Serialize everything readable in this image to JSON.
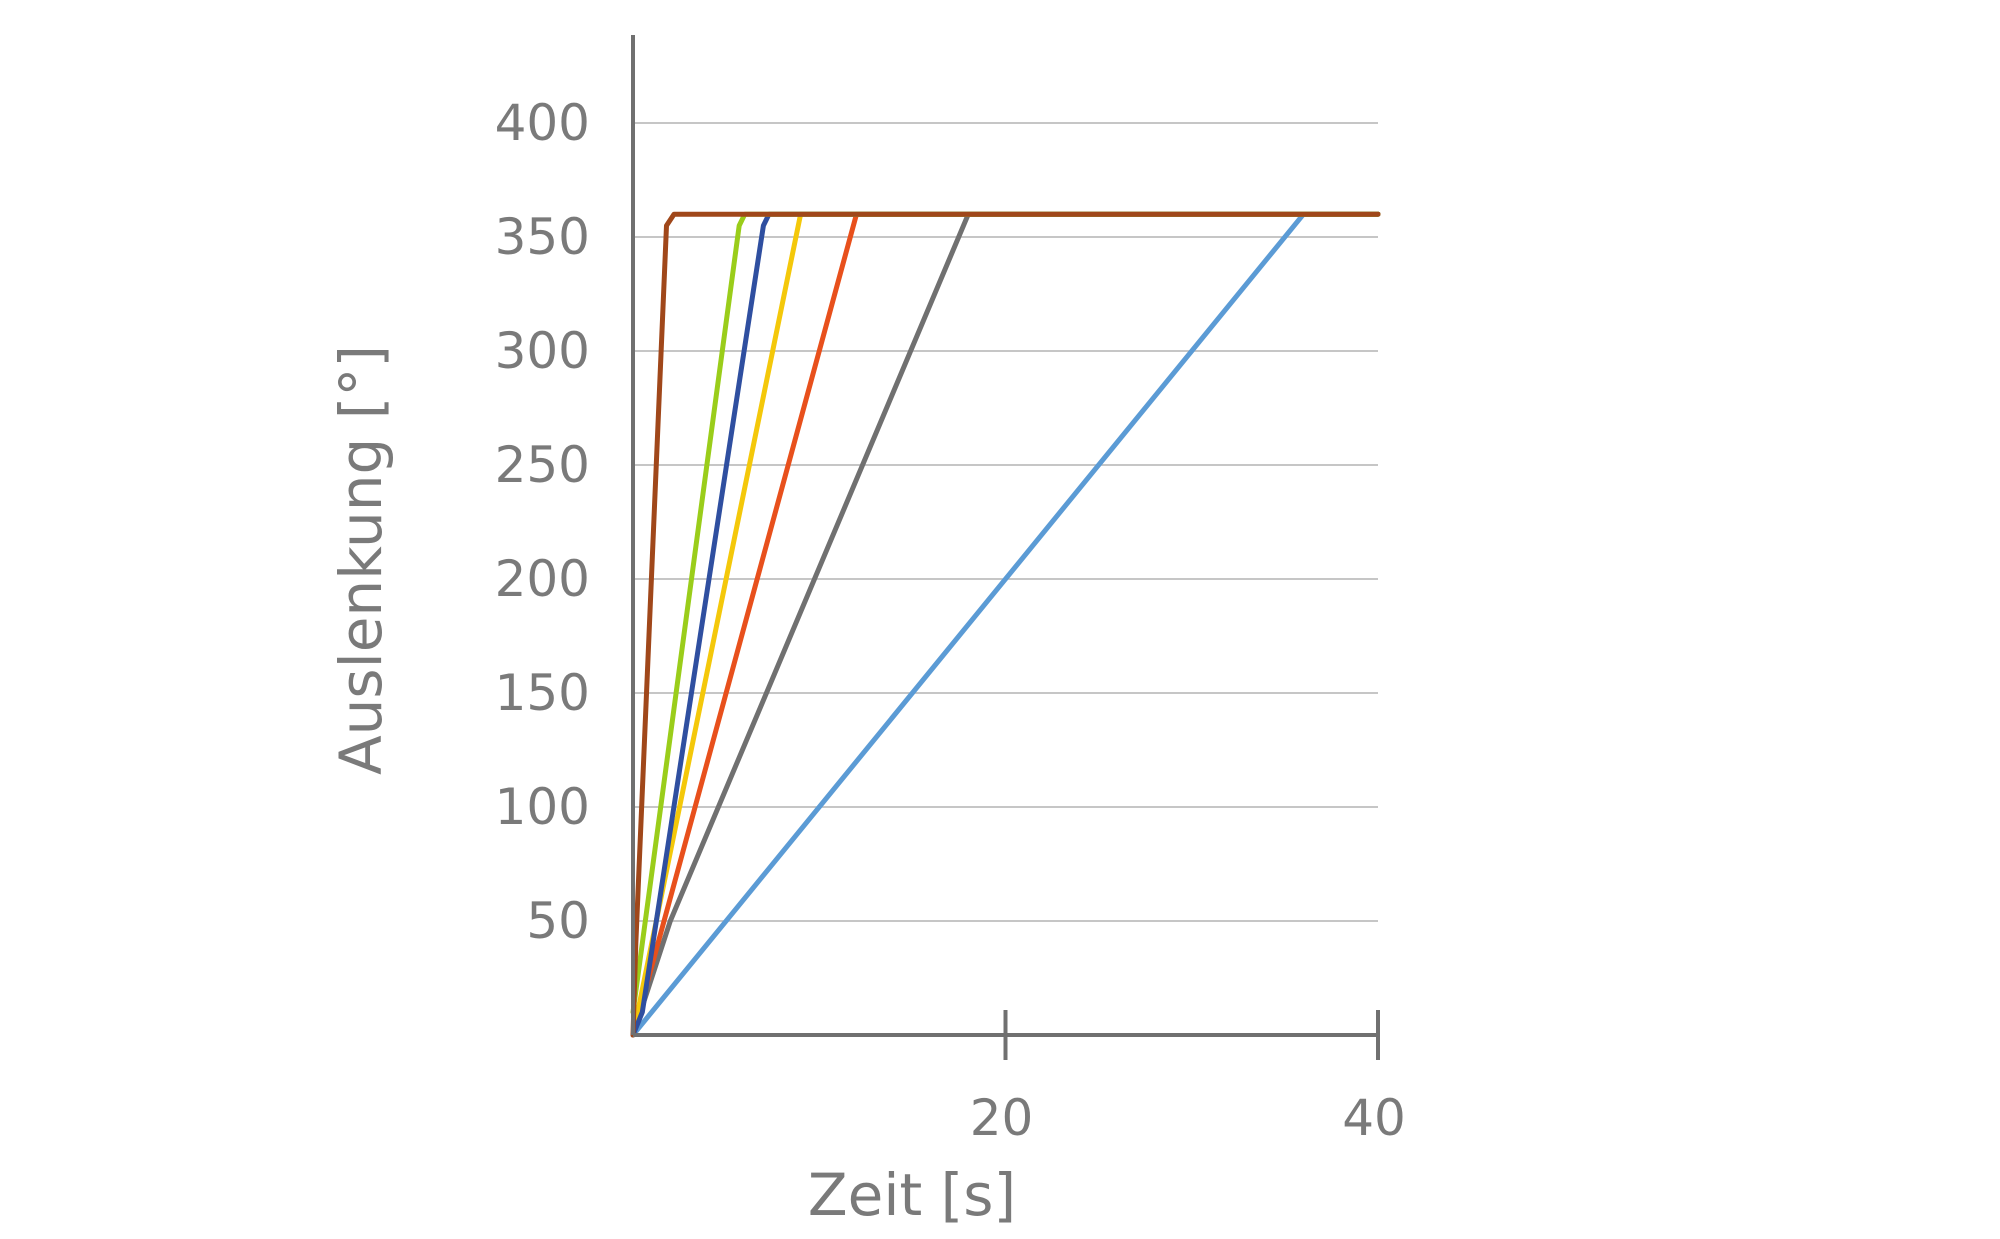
{
  "chart_data": {
    "type": "line",
    "xlabel": "Zeit [s]",
    "ylabel": "Auslenkung [°]",
    "xlim": [
      0,
      40
    ],
    "ylim": [
      0,
      430
    ],
    "x_ticks": [
      20,
      40
    ],
    "y_ticks": [
      50,
      100,
      150,
      200,
      250,
      300,
      350,
      400
    ],
    "grid": true,
    "legend": "none",
    "series": [
      {
        "color": "#5b9bd5",
        "points": [
          [
            0,
            0
          ],
          [
            36,
            360
          ],
          [
            40,
            360
          ]
        ]
      },
      {
        "color": "#707070",
        "points": [
          [
            0,
            0
          ],
          [
            2,
            50
          ],
          [
            18,
            360
          ],
          [
            40,
            360
          ]
        ]
      },
      {
        "color": "#e8501c",
        "points": [
          [
            0,
            0
          ],
          [
            12,
            360
          ],
          [
            40,
            360
          ]
        ]
      },
      {
        "color": "#f4c80a",
        "points": [
          [
            0,
            0
          ],
          [
            9,
            360
          ],
          [
            40,
            360
          ]
        ]
      },
      {
        "color": "#2f4fa0",
        "points": [
          [
            0,
            0
          ],
          [
            0.5,
            10
          ],
          [
            7,
            355
          ],
          [
            7.3,
            360
          ],
          [
            40,
            360
          ]
        ]
      },
      {
        "color": "#9acd1a",
        "points": [
          [
            0,
            10
          ],
          [
            5.7,
            355
          ],
          [
            6,
            360
          ],
          [
            40,
            360
          ]
        ]
      },
      {
        "color": "#a0471a",
        "points": [
          [
            0,
            0
          ],
          [
            0.15,
            40
          ],
          [
            1.8,
            355
          ],
          [
            2.2,
            360
          ],
          [
            40,
            360
          ]
        ]
      }
    ]
  }
}
